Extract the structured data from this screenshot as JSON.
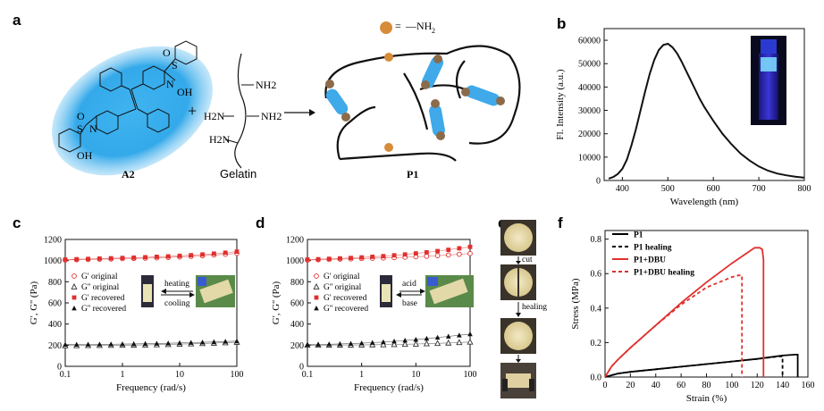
{
  "panels": {
    "a": "a",
    "b": "b",
    "c": "c",
    "d": "d",
    "e": "e",
    "f": "f"
  },
  "panel_a": {
    "legend_symbol_eq": "=",
    "legend_group": "—NH",
    "legend_group_sub": "2",
    "plus": "+",
    "compound_label": "A2",
    "gelatin_label": "Gelatin",
    "product_label": "P1",
    "gelatin_groups": [
      "NH2",
      "H2N",
      "NH2",
      "H2N"
    ],
    "sulfonyl_O": "O",
    "sulfonyl_S": "S",
    "sulfonyl_N": "N",
    "hydroxyl": "OH"
  },
  "panel_e": {
    "step1": "cut",
    "step2": "healing"
  },
  "panel_c_insets": {
    "top": "heating",
    "bottom": "cooling"
  },
  "panel_d_insets": {
    "top": "acid",
    "bottom": "base"
  },
  "chart_data": [
    {
      "id": "b",
      "type": "line",
      "title": "",
      "xlabel": "Wavelength (nm)",
      "ylabel": "Fl. Intensity (a.u.)",
      "xlim": [
        360,
        800
      ],
      "ylim": [
        0,
        65000
      ],
      "xticks": [
        400,
        500,
        600,
        700,
        800
      ],
      "yticks": [
        0,
        10000,
        20000,
        30000,
        40000,
        50000,
        60000
      ],
      "series": [
        {
          "name": "emission",
          "x": [
            370,
            380,
            390,
            400,
            410,
            420,
            430,
            440,
            450,
            460,
            470,
            480,
            490,
            500,
            510,
            520,
            530,
            540,
            550,
            560,
            570,
            580,
            590,
            600,
            620,
            640,
            660,
            680,
            700,
            720,
            740,
            760,
            780,
            800
          ],
          "y": [
            800,
            1500,
            2800,
            5000,
            9000,
            15000,
            22000,
            30000,
            38000,
            45500,
            51500,
            55800,
            58000,
            58500,
            57000,
            54500,
            51000,
            47000,
            43000,
            39000,
            35000,
            31500,
            28500,
            25500,
            20000,
            15500,
            11500,
            8500,
            6000,
            4200,
            3000,
            2200,
            1600,
            1200
          ]
        }
      ]
    },
    {
      "id": "c",
      "type": "scatter",
      "xscale": "log",
      "xlabel": "Frequency (rad/s)",
      "ylabel": "G', G'' (Pa)",
      "xlim": [
        0.1,
        100
      ],
      "ylim": [
        0,
        1200
      ],
      "xticks": [
        0.1,
        1,
        10,
        100
      ],
      "xtick_labels": [
        "0.1",
        "1",
        "10",
        "100"
      ],
      "yticks": [
        0,
        200,
        400,
        600,
        800,
        1000,
        1200
      ],
      "x": [
        0.1,
        0.158,
        0.251,
        0.398,
        0.631,
        1,
        1.58,
        2.51,
        3.98,
        6.31,
        10,
        15.8,
        25.1,
        39.8,
        63.1,
        100
      ],
      "series": [
        {
          "name": "G' original",
          "marker": "open-circle",
          "color": "#e0302e",
          "values": [
            1005,
            1008,
            1010,
            1013,
            1015,
            1018,
            1020,
            1023,
            1026,
            1030,
            1034,
            1040,
            1046,
            1053,
            1060,
            1068
          ]
        },
        {
          "name": "G'' original",
          "marker": "open-triangle",
          "color": "#333333",
          "values": [
            195,
            196,
            197,
            198,
            199,
            200,
            201,
            203,
            205,
            207,
            210,
            213,
            216,
            220,
            224,
            228
          ]
        },
        {
          "name": "G' recovered",
          "marker": "filled-square",
          "color": "#e0302e",
          "values": [
            1010,
            1013,
            1016,
            1019,
            1022,
            1025,
            1028,
            1032,
            1036,
            1040,
            1045,
            1051,
            1058,
            1066,
            1075,
            1085
          ]
        },
        {
          "name": "G'' recovered",
          "marker": "filled-triangle",
          "color": "#111111",
          "values": [
            205,
            206,
            207,
            208,
            209,
            210,
            212,
            214,
            216,
            218,
            221,
            224,
            227,
            231,
            235,
            238
          ]
        }
      ],
      "legend": "middle-left"
    },
    {
      "id": "d",
      "type": "scatter",
      "xscale": "log",
      "xlabel": "Frequency (rad/s)",
      "ylabel": "G', G'' (Pa)",
      "xlim": [
        0.1,
        100
      ],
      "ylim": [
        0,
        1200
      ],
      "xticks": [
        0.1,
        1,
        10,
        100
      ],
      "xtick_labels": [
        "0.1",
        "1",
        "10",
        "100"
      ],
      "yticks": [
        0,
        200,
        400,
        600,
        800,
        1000,
        1200
      ],
      "x": [
        0.1,
        0.158,
        0.251,
        0.398,
        0.631,
        1,
        1.58,
        2.51,
        3.98,
        6.31,
        10,
        15.8,
        25.1,
        39.8,
        63.1,
        100
      ],
      "series": [
        {
          "name": "G' original",
          "marker": "open-circle",
          "color": "#e0302e",
          "values": [
            1005,
            1008,
            1011,
            1014,
            1016,
            1019,
            1022,
            1025,
            1028,
            1032,
            1036,
            1041,
            1047,
            1053,
            1060,
            1067
          ]
        },
        {
          "name": "G'' original",
          "marker": "open-triangle",
          "color": "#333333",
          "values": [
            200,
            200,
            201,
            202,
            202,
            203,
            204,
            205,
            207,
            209,
            211,
            214,
            217,
            221,
            226,
            230
          ]
        },
        {
          "name": "G' recovered",
          "marker": "filled-square",
          "color": "#e0302e",
          "values": [
            1010,
            1013,
            1017,
            1021,
            1025,
            1030,
            1036,
            1042,
            1050,
            1058,
            1068,
            1078,
            1090,
            1102,
            1116,
            1130
          ]
        },
        {
          "name": "G'' recovered",
          "marker": "filled-triangle",
          "color": "#111111",
          "values": [
            205,
            207,
            209,
            212,
            215,
            219,
            224,
            230,
            237,
            245,
            254,
            263,
            273,
            283,
            294,
            305
          ]
        }
      ],
      "legend": "middle-left"
    },
    {
      "id": "f",
      "type": "line",
      "xlabel": "Strain (%)",
      "ylabel": "Stress (MPa)",
      "xlim": [
        0,
        160
      ],
      "ylim": [
        0,
        0.85
      ],
      "xticks": [
        0,
        20,
        40,
        60,
        80,
        100,
        120,
        140,
        160
      ],
      "yticks": [
        0.0,
        0.2,
        0.4,
        0.6,
        0.8
      ],
      "ytick_labels": [
        "0.0",
        "0.2",
        "0.4",
        "0.6",
        "0.8"
      ],
      "series": [
        {
          "name": "P1",
          "color": "#000000",
          "dash": "solid",
          "x": [
            0,
            10,
            20,
            40,
            60,
            80,
            100,
            120,
            140,
            150,
            152,
            152
          ],
          "y": [
            0,
            0.02,
            0.03,
            0.045,
            0.06,
            0.075,
            0.09,
            0.105,
            0.125,
            0.13,
            0.13,
            0
          ]
        },
        {
          "name": "P1 healing",
          "color": "#000000",
          "dash": "dash",
          "x": [
            0,
            10,
            20,
            40,
            60,
            80,
            100,
            120,
            138,
            140,
            140
          ],
          "y": [
            0,
            0.02,
            0.03,
            0.045,
            0.06,
            0.075,
            0.09,
            0.105,
            0.12,
            0.12,
            0
          ]
        },
        {
          "name": "P1+DBU",
          "color": "#e0302e",
          "dash": "solid",
          "x": [
            0,
            5,
            10,
            20,
            40,
            60,
            80,
            100,
            110,
            118,
            122,
            124,
            125,
            125
          ],
          "y": [
            0,
            0.06,
            0.1,
            0.17,
            0.3,
            0.43,
            0.55,
            0.66,
            0.71,
            0.75,
            0.75,
            0.74,
            0.68,
            0
          ]
        },
        {
          "name": "P1+DBU healing",
          "color": "#e0302e",
          "dash": "dash",
          "x": [
            0,
            5,
            10,
            20,
            40,
            60,
            80,
            100,
            105,
            108,
            108
          ],
          "y": [
            0,
            0.06,
            0.1,
            0.17,
            0.3,
            0.42,
            0.52,
            0.58,
            0.59,
            0.59,
            0
          ]
        }
      ],
      "legend": "top-left"
    }
  ]
}
